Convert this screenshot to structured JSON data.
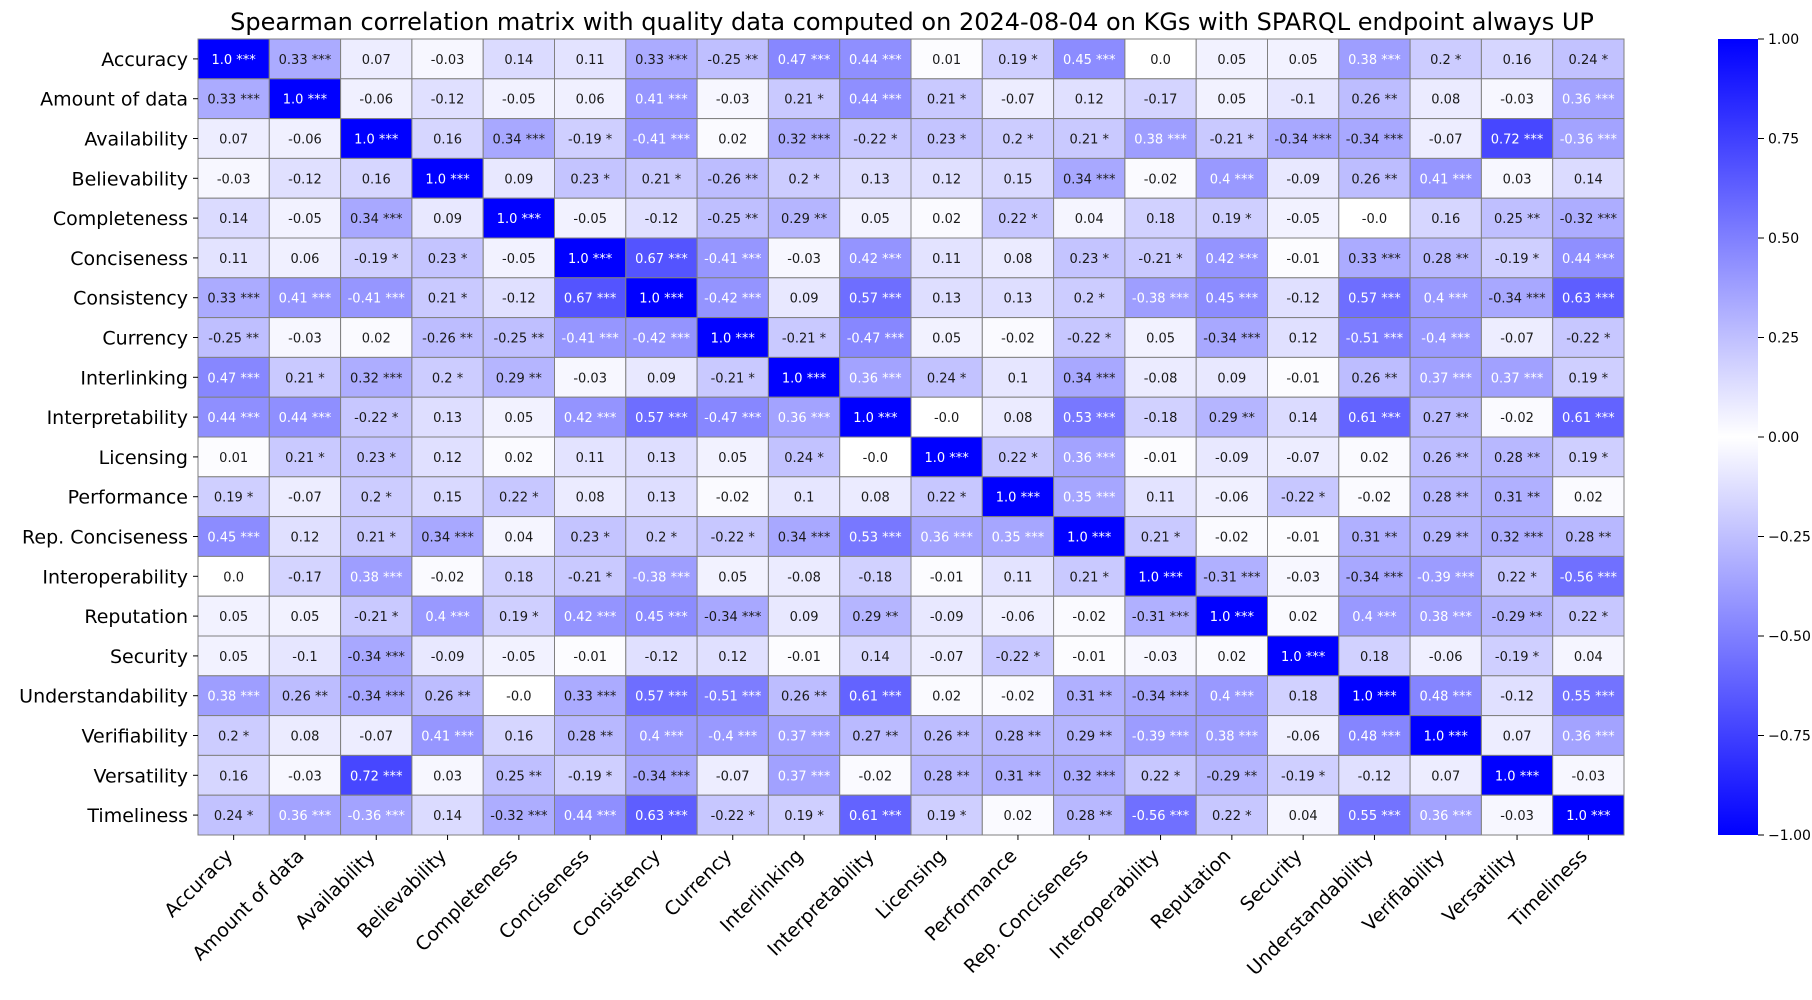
{
  "chart_data": {
    "type": "heatmap",
    "title": "Spearman correlation matrix with quality data computed on 2024-08-04 on KGs with SPARQL endpoint always UP",
    "labels": [
      "Accuracy",
      "Amount of data",
      "Availability",
      "Believability",
      "Completeness",
      "Conciseness",
      "Consistency",
      "Currency",
      "Interlinking",
      "Interpretability",
      "Licensing",
      "Performance",
      "Rep. Conciseness",
      "Interoperability",
      "Reputation",
      "Security",
      "Understandability",
      "Verifiability",
      "Versatility",
      "Timeliness"
    ],
    "cells": [
      [
        "1.0 ***",
        "0.33 ***",
        "0.07",
        "-0.03",
        "0.14",
        "0.11",
        "0.33 ***",
        "-0.25 **",
        "0.47 ***",
        "0.44 ***",
        "0.01",
        "0.19 *",
        "0.45 ***",
        "0.0",
        "0.05",
        "0.05",
        "0.38 ***",
        "0.2 *",
        "0.16",
        "0.24 *"
      ],
      [
        "0.33 ***",
        "1.0 ***",
        "-0.06",
        "-0.12",
        "-0.05",
        "0.06",
        "0.41 ***",
        "-0.03",
        "0.21 *",
        "0.44 ***",
        "0.21 *",
        "-0.07",
        "0.12",
        "-0.17",
        "0.05",
        "-0.1",
        "0.26 **",
        "0.08",
        "-0.03",
        "0.36 ***"
      ],
      [
        "0.07",
        "-0.06",
        "1.0 ***",
        "0.16",
        "0.34 ***",
        "-0.19 *",
        "-0.41 ***",
        "0.02",
        "0.32 ***",
        "-0.22 *",
        "0.23 *",
        "0.2 *",
        "0.21 *",
        "0.38 ***",
        "-0.21 *",
        "-0.34 ***",
        "-0.34 ***",
        "-0.07",
        "0.72 ***",
        "-0.36 ***"
      ],
      [
        "-0.03",
        "-0.12",
        "0.16",
        "1.0 ***",
        "0.09",
        "0.23 *",
        "0.21 *",
        "-0.26 **",
        "0.2 *",
        "0.13",
        "0.12",
        "0.15",
        "0.34 ***",
        "-0.02",
        "0.4 ***",
        "-0.09",
        "0.26 **",
        "0.41 ***",
        "0.03",
        "0.14"
      ],
      [
        "0.14",
        "-0.05",
        "0.34 ***",
        "0.09",
        "1.0 ***",
        "-0.05",
        "-0.12",
        "-0.25 **",
        "0.29 **",
        "0.05",
        "0.02",
        "0.22 *",
        "0.04",
        "0.18",
        "0.19 *",
        "-0.05",
        "-0.0",
        "0.16",
        "0.25 **",
        "-0.32 ***"
      ],
      [
        "0.11",
        "0.06",
        "-0.19 *",
        "0.23 *",
        "-0.05",
        "1.0 ***",
        "0.67 ***",
        "-0.41 ***",
        "-0.03",
        "0.42 ***",
        "0.11",
        "0.08",
        "0.23 *",
        "-0.21 *",
        "0.42 ***",
        "-0.01",
        "0.33 ***",
        "0.28 **",
        "-0.19 *",
        "0.44 ***"
      ],
      [
        "0.33 ***",
        "0.41 ***",
        "-0.41 ***",
        "0.21 *",
        "-0.12",
        "0.67 ***",
        "1.0 ***",
        "-0.42 ***",
        "0.09",
        "0.57 ***",
        "0.13",
        "0.13",
        "0.2 *",
        "-0.38 ***",
        "0.45 ***",
        "-0.12",
        "0.57 ***",
        "0.4 ***",
        "-0.34 ***",
        "0.63 ***"
      ],
      [
        "-0.25 **",
        "-0.03",
        "0.02",
        "-0.26 **",
        "-0.25 **",
        "-0.41 ***",
        "-0.42 ***",
        "1.0 ***",
        "-0.21 *",
        "-0.47 ***",
        "0.05",
        "-0.02",
        "-0.22 *",
        "0.05",
        "-0.34 ***",
        "0.12",
        "-0.51 ***",
        "-0.4 ***",
        "-0.07",
        "-0.22 *"
      ],
      [
        "0.47 ***",
        "0.21 *",
        "0.32 ***",
        "0.2 *",
        "0.29 **",
        "-0.03",
        "0.09",
        "-0.21 *",
        "1.0 ***",
        "0.36 ***",
        "0.24 *",
        "0.1",
        "0.34 ***",
        "-0.08",
        "0.09",
        "-0.01",
        "0.26 **",
        "0.37 ***",
        "0.37 ***",
        "0.19 *"
      ],
      [
        "0.44 ***",
        "0.44 ***",
        "-0.22 *",
        "0.13",
        "0.05",
        "0.42 ***",
        "0.57 ***",
        "-0.47 ***",
        "0.36 ***",
        "1.0 ***",
        "-0.0",
        "0.08",
        "0.53 ***",
        "-0.18",
        "0.29 **",
        "0.14",
        "0.61 ***",
        "0.27 **",
        "-0.02",
        "0.61 ***"
      ],
      [
        "0.01",
        "0.21 *",
        "0.23 *",
        "0.12",
        "0.02",
        "0.11",
        "0.13",
        "0.05",
        "0.24 *",
        "-0.0",
        "1.0 ***",
        "0.22 *",
        "0.36 ***",
        "-0.01",
        "-0.09",
        "-0.07",
        "0.02",
        "0.26 **",
        "0.28 **",
        "0.19 *"
      ],
      [
        "0.19 *",
        "-0.07",
        "0.2 *",
        "0.15",
        "0.22 *",
        "0.08",
        "0.13",
        "-0.02",
        "0.1",
        "0.08",
        "0.22 *",
        "1.0 ***",
        "0.35 ***",
        "0.11",
        "-0.06",
        "-0.22 *",
        "-0.02",
        "0.28 **",
        "0.31 **",
        "0.02"
      ],
      [
        "0.45 ***",
        "0.12",
        "0.21 *",
        "0.34 ***",
        "0.04",
        "0.23 *",
        "0.2 *",
        "-0.22 *",
        "0.34 ***",
        "0.53 ***",
        "0.36 ***",
        "0.35 ***",
        "1.0 ***",
        "0.21 *",
        "-0.02",
        "-0.01",
        "0.31 **",
        "0.29 **",
        "0.32 ***",
        "0.28 **"
      ],
      [
        "0.0",
        "-0.17",
        "0.38 ***",
        "-0.02",
        "0.18",
        "-0.21 *",
        "-0.38 ***",
        "0.05",
        "-0.08",
        "-0.18",
        "-0.01",
        "0.11",
        "0.21 *",
        "1.0 ***",
        "-0.31 ***",
        "-0.03",
        "-0.34 ***",
        "-0.39 ***",
        "0.22 *",
        "-0.56 ***"
      ],
      [
        "0.05",
        "0.05",
        "-0.21 *",
        "0.4 ***",
        "0.19 *",
        "0.42 ***",
        "0.45 ***",
        "-0.34 ***",
        "0.09",
        "0.29 **",
        "-0.09",
        "-0.06",
        "-0.02",
        "-0.31 ***",
        "1.0 ***",
        "0.02",
        "0.4 ***",
        "0.38 ***",
        "-0.29 **",
        "0.22 *"
      ],
      [
        "0.05",
        "-0.1",
        "-0.34 ***",
        "-0.09",
        "-0.05",
        "-0.01",
        "-0.12",
        "0.12",
        "-0.01",
        "0.14",
        "-0.07",
        "-0.22 *",
        "-0.01",
        "-0.03",
        "0.02",
        "1.0 ***",
        "0.18",
        "-0.06",
        "-0.19 *",
        "0.04"
      ],
      [
        "0.38 ***",
        "0.26 **",
        "-0.34 ***",
        "0.26 **",
        "-0.0",
        "0.33 ***",
        "0.57 ***",
        "-0.51 ***",
        "0.26 **",
        "0.61 ***",
        "0.02",
        "-0.02",
        "0.31 **",
        "-0.34 ***",
        "0.4 ***",
        "0.18",
        "1.0 ***",
        "0.48 ***",
        "-0.12",
        "0.55 ***"
      ],
      [
        "0.2 *",
        "0.08",
        "-0.07",
        "0.41 ***",
        "0.16",
        "0.28 **",
        "0.4 ***",
        "-0.4 ***",
        "0.37 ***",
        "0.27 **",
        "0.26 **",
        "0.28 **",
        "0.29 **",
        "-0.39 ***",
        "0.38 ***",
        "-0.06",
        "0.48 ***",
        "1.0 ***",
        "0.07",
        "0.36 ***"
      ],
      [
        "0.16",
        "-0.03",
        "0.72 ***",
        "0.03",
        "0.25 **",
        "-0.19 *",
        "-0.34 ***",
        "-0.07",
        "0.37 ***",
        "-0.02",
        "0.28 **",
        "0.31 **",
        "0.32 ***",
        "0.22 *",
        "-0.29 **",
        "-0.19 *",
        "-0.12",
        "0.07",
        "1.0 ***",
        "-0.03"
      ],
      [
        "0.24 *",
        "0.36 ***",
        "-0.36 ***",
        "0.14",
        "-0.32 ***",
        "0.44 ***",
        "0.63 ***",
        "-0.22 *",
        "0.19 *",
        "0.61 ***",
        "0.19 *",
        "0.02",
        "0.28 **",
        "-0.56 ***",
        "0.22 *",
        "0.04",
        "0.55 ***",
        "0.36 ***",
        "-0.03",
        "1.0 ***"
      ]
    ],
    "colorbar": {
      "min": -1.0,
      "max": 1.0,
      "ticks": [
        "1.00",
        "0.75",
        "0.50",
        "0.25",
        "0.00",
        "−0.25",
        "−0.50",
        "−0.75",
        "−1.00"
      ],
      "tick_values": [
        1.0,
        0.75,
        0.5,
        0.25,
        0.0,
        -0.25,
        -0.5,
        -0.75,
        -1.0
      ]
    },
    "colors": {
      "high": "#0000ff",
      "mid": "#ffffff",
      "grid": "#808080"
    },
    "xlabel": "",
    "ylabel": ""
  }
}
